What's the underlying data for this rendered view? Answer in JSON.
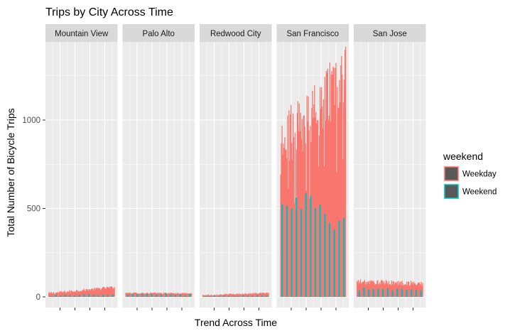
{
  "chart_data": {
    "type": "bar",
    "title": "Trips by City Across Time",
    "xlabel": "Trend Across Time",
    "ylabel": "Total Number of Bicycle Trips",
    "ylim": [
      0,
      1500
    ],
    "yticks": [
      0,
      500,
      1000
    ],
    "facets": [
      "Mountain View",
      "Palo Alto",
      "Redwood City",
      "San Francisco",
      "San Jose"
    ],
    "grid": true,
    "legend": {
      "title": "weekend",
      "position": "right",
      "entries": [
        "Weekday",
        "Weekend"
      ]
    },
    "colors": {
      "Weekday": "#F8766D",
      "Weekend": "#00BFC4",
      "panel_bg": "#EBEBEB",
      "strip_bg": "#D9D9D9",
      "grid": "#FFFFFF"
    },
    "series": [
      {
        "name": "Weekday",
        "panels": [
          {
            "facet": "Mountain View",
            "start": 20,
            "end": 55,
            "noise": 8
          },
          {
            "facet": "Palo Alto",
            "start": 22,
            "end": 20,
            "noise": 4
          },
          {
            "facet": "Redwood City",
            "start": 10,
            "end": 22,
            "noise": 4
          },
          {
            "facet": "San Francisco",
            "start": 850,
            "end": 1250,
            "noise": 180
          },
          {
            "facet": "San Jose",
            "start": 85,
            "end": 75,
            "noise": 15
          }
        ]
      },
      {
        "name": "Weekend",
        "panels": [
          {
            "facet": "Mountain View",
            "start": 10,
            "end": 15,
            "noise": 4
          },
          {
            "facet": "Palo Alto",
            "start": 18,
            "end": 12,
            "noise": 4
          },
          {
            "facet": "Redwood City",
            "start": 6,
            "end": 8,
            "noise": 2
          },
          {
            "facet": "San Francisco",
            "start": 600,
            "end": 380,
            "noise": 80
          },
          {
            "facet": "San Jose",
            "start": 45,
            "end": 40,
            "noise": 10
          }
        ]
      }
    ]
  }
}
